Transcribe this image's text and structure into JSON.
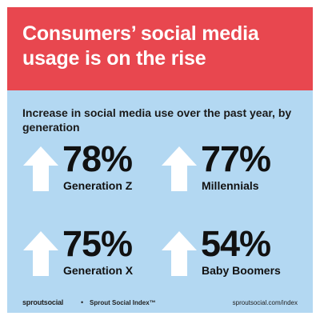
{
  "headline": "Consumers’ social media usage is on the rise",
  "subtitle": "Increase in social media use over the past year, by generation",
  "stats": [
    {
      "value": "78%",
      "label": "Generation Z",
      "icon": "up-arrow-icon"
    },
    {
      "value": "77%",
      "label": "Millennials",
      "icon": "up-arrow-icon"
    },
    {
      "value": "75%",
      "label": "Generation X",
      "icon": "up-arrow-icon"
    },
    {
      "value": "54%",
      "label": "Baby Boomers",
      "icon": "up-arrow-icon"
    }
  ],
  "footer": {
    "logo_text": "sproutsocial",
    "separator": "•",
    "index_label": "Sprout Social Index™",
    "url": "sproutsocial.com/index"
  },
  "colors": {
    "banner": "#e8474f",
    "background": "#b3d8f2",
    "arrow": "#ffffff",
    "text": "#111111"
  }
}
